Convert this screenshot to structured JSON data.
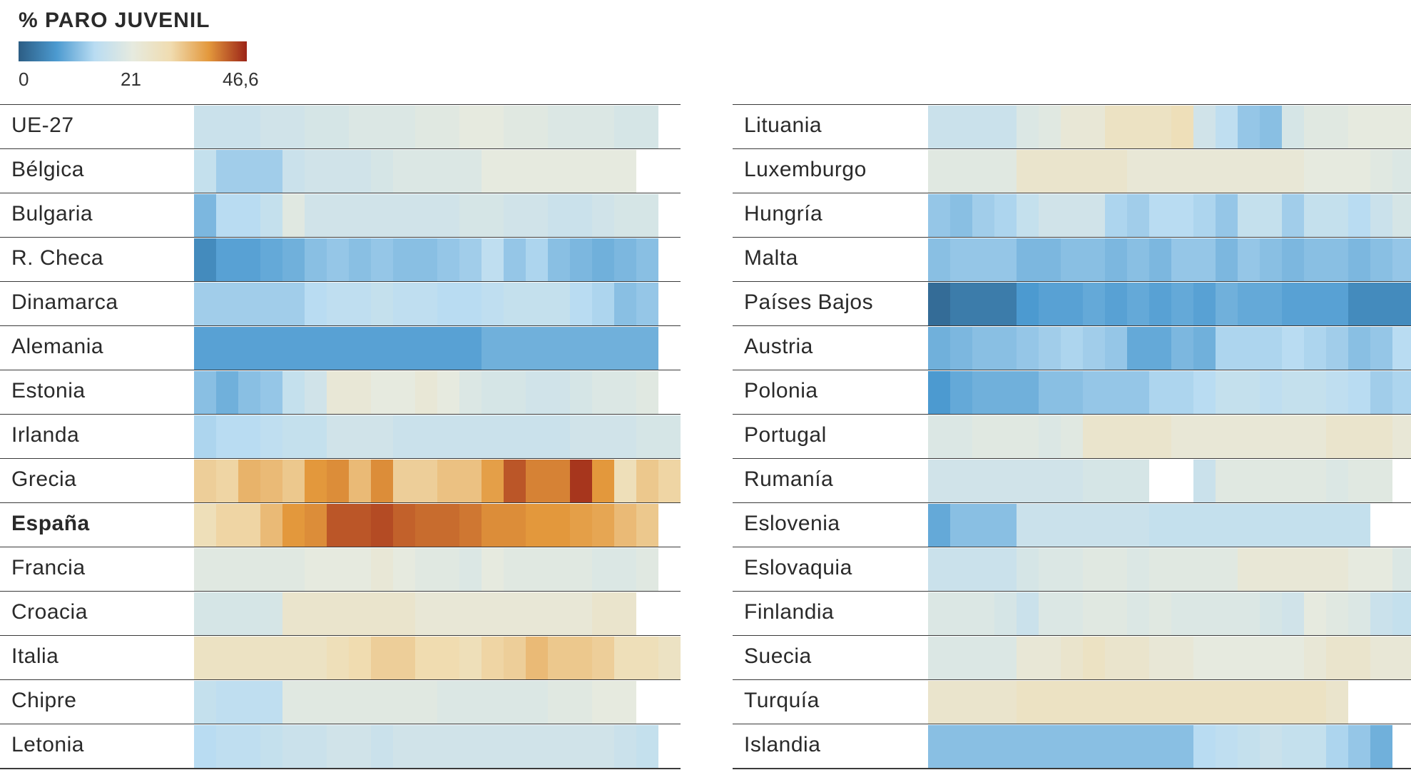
{
  "legend": {
    "title": "% PARO JUVENIL",
    "min_label": "0",
    "mid_label": "21",
    "max_label": "46,6",
    "min": 0,
    "mid": 21,
    "max": 46.6,
    "colors": [
      "#2c5d84",
      "#4c9ad0",
      "#b9dcf2",
      "#e6eadf",
      "#f0dcb0",
      "#e3983c",
      "#9c2418"
    ]
  },
  "chart_data": {
    "type": "heatmap",
    "title": "% PARO JUVENIL",
    "value_range": [
      0,
      46.6
    ],
    "panels": [
      {
        "rows": [
          {
            "label": "UE-27",
            "values": [
              16,
              16,
              16,
              17,
              17,
              18,
              18,
              19,
              19,
              19,
              20,
              20,
              21,
              21,
              20,
              20,
              19,
              19,
              19,
              18,
              18
            ]
          },
          {
            "label": "Bélgica",
            "values": [
              15,
              11,
              11,
              11,
              16,
              17,
              17,
              17,
              18,
              19,
              19,
              19,
              19,
              21,
              21,
              21,
              21,
              21,
              21,
              21,
              null
            ]
          },
          {
            "label": "Bulgaria",
            "values": [
              8,
              13,
              13,
              15,
              20,
              17,
              17,
              17,
              17,
              17,
              17,
              17,
              18,
              18,
              17,
              17,
              16,
              16,
              17,
              18,
              18
            ]
          },
          {
            "label": "R. Checa",
            "values": [
              3,
              5,
              5,
              6,
              7,
              9,
              10,
              9,
              10,
              9,
              9,
              10,
              11,
              14,
              10,
              12,
              9,
              8,
              7,
              8,
              9
            ]
          },
          {
            "label": "Dinamarca",
            "values": [
              11,
              11,
              11,
              11,
              11,
              13,
              14,
              14,
              15,
              14,
              14,
              13,
              13,
              14,
              15,
              15,
              15,
              13,
              12,
              9,
              10
            ]
          },
          {
            "label": "Alemania",
            "values": [
              5,
              5,
              5,
              5,
              5,
              5,
              5,
              5,
              5,
              5,
              5,
              5,
              5,
              7,
              7,
              7,
              7,
              7,
              7,
              7,
              7
            ]
          },
          {
            "label": "Estonia",
            "values": [
              9,
              7,
              9,
              10,
              15,
              17,
              22,
              22,
              21,
              21,
              22,
              21,
              19,
              18,
              18,
              17,
              17,
              18,
              19,
              19,
              20
            ]
          },
          {
            "label": "Irlanda",
            "values": [
              12,
              13,
              13,
              14,
              15,
              15,
              17,
              17,
              17,
              16,
              16,
              16,
              16,
              16,
              16,
              16,
              16,
              17,
              17,
              17,
              18,
              18
            ]
          },
          {
            "label": "Grecia",
            "values": [
              28,
              27,
              32,
              31,
              29,
              36,
              37,
              31,
              37,
              28,
              28,
              30,
              30,
              35,
              42,
              38,
              38,
              45,
              36,
              25,
              29,
              27
            ]
          },
          {
            "label": "España",
            "values": [
              25,
              27,
              27,
              31,
              36,
              37,
              42,
              42,
              43,
              41,
              40,
              40,
              39,
              37,
              37,
              36,
              36,
              35,
              34,
              31,
              29
            ]
          },
          {
            "label": "Francia",
            "values": [
              20,
              20,
              20,
              20,
              20,
              21,
              21,
              21,
              22,
              21,
              20,
              20,
              19,
              21,
              20,
              20,
              20,
              20,
              19,
              19,
              20
            ]
          },
          {
            "label": "Croacia",
            "values": [
              18,
              18,
              18,
              18,
              23,
              23,
              23,
              23,
              23,
              23,
              22,
              22,
              22,
              22,
              22,
              22,
              22,
              22,
              23,
              23,
              null
            ]
          },
          {
            "label": "Italia",
            "values": [
              24,
              24,
              24,
              24,
              24,
              24,
              25,
              26,
              28,
              28,
              26,
              26,
              25,
              27,
              28,
              31,
              29,
              29,
              28,
              25,
              25,
              24
            ]
          },
          {
            "label": "Chipre",
            "values": [
              15,
              14,
              14,
              14,
              20,
              20,
              20,
              20,
              20,
              20,
              20,
              19,
              19,
              19,
              19,
              19,
              20,
              20,
              21,
              21,
              null
            ]
          },
          {
            "label": "Letonia",
            "values": [
              13,
              14,
              14,
              15,
              16,
              16,
              17,
              17,
              16,
              17,
              17,
              17,
              17,
              17,
              17,
              17,
              17,
              17,
              17,
              16,
              15
            ]
          }
        ]
      },
      {
        "rows": [
          {
            "label": "Lituania",
            "values": [
              16,
              16,
              16,
              16,
              19,
              20,
              22,
              22,
              24,
              24,
              24,
              25,
              17,
              14,
              10,
              9,
              18,
              20,
              20,
              21,
              21,
              21
            ]
          },
          {
            "label": "Luxemburgo",
            "values": [
              20,
              20,
              20,
              20,
              23,
              23,
              23,
              23,
              23,
              22,
              22,
              22,
              22,
              22,
              22,
              22,
              22,
              21,
              21,
              21,
              20,
              19
            ]
          },
          {
            "label": "Hungría",
            "values": [
              10,
              9,
              11,
              12,
              15,
              17,
              17,
              17,
              12,
              11,
              13,
              13,
              12,
              10,
              15,
              15,
              11,
              15,
              15,
              13,
              16,
              18
            ]
          },
          {
            "label": "Malta",
            "values": [
              9,
              10,
              10,
              10,
              8,
              8,
              9,
              9,
              8,
              9,
              8,
              10,
              10,
              8,
              10,
              9,
              8,
              9,
              9,
              8,
              9,
              10
            ]
          },
          {
            "label": "Países Bajos",
            "values": [
              1,
              2,
              2,
              2,
              4,
              5,
              5,
              6,
              5,
              6,
              5,
              6,
              5,
              7,
              6,
              6,
              5,
              5,
              5,
              3,
              3,
              3,
              3
            ]
          },
          {
            "label": "Austria",
            "values": [
              7,
              8,
              9,
              9,
              10,
              11,
              12,
              11,
              10,
              6,
              6,
              8,
              7,
              12,
              12,
              12,
              13,
              12,
              11,
              9,
              10,
              13
            ]
          },
          {
            "label": "Polonia",
            "values": [
              4,
              6,
              7,
              7,
              7,
              9,
              9,
              10,
              10,
              10,
              12,
              12,
              13,
              15,
              15,
              14,
              15,
              15,
              14,
              13,
              11,
              12
            ]
          },
          {
            "label": "Portugal",
            "values": [
              19,
              19,
              20,
              20,
              20,
              19,
              20,
              23,
              23,
              23,
              23,
              22,
              22,
              22,
              22,
              22,
              22,
              22,
              23,
              23,
              23,
              22
            ]
          },
          {
            "label": "Rumanía",
            "values": [
              17,
              17,
              17,
              17,
              17,
              17,
              17,
              18,
              18,
              18,
              null,
              null,
              16,
              20,
              20,
              20,
              20,
              20,
              19,
              20,
              20,
              null
            ]
          },
          {
            "label": "Eslovenia",
            "values": [
              6,
              9,
              9,
              9,
              16,
              16,
              16,
              16,
              16,
              16,
              15,
              15,
              15,
              15,
              15,
              15,
              15,
              15,
              15,
              15,
              null
            ]
          },
          {
            "label": "Eslovaquia",
            "values": [
              16,
              16,
              16,
              16,
              18,
              19,
              19,
              20,
              20,
              19,
              20,
              20,
              20,
              20,
              22,
              22,
              22,
              22,
              22,
              21,
              21,
              19
            ]
          },
          {
            "label": "Finlandia",
            "values": [
              19,
              19,
              19,
              18,
              16,
              19,
              19,
              20,
              20,
              19,
              20,
              19,
              19,
              19,
              19,
              18,
              17,
              21,
              20,
              19,
              16,
              15,
              15
            ]
          },
          {
            "label": "Suecia",
            "values": [
              19,
              19,
              19,
              19,
              22,
              22,
              23,
              24,
              23,
              23,
              22,
              22,
              21,
              21,
              21,
              21,
              21,
              22,
              23,
              23,
              22,
              22,
              23
            ]
          },
          {
            "label": "Turquía",
            "values": [
              23,
              23,
              23,
              23,
              24,
              24,
              24,
              24,
              24,
              24,
              24,
              24,
              24,
              24,
              24,
              24,
              24,
              24,
              23,
              null,
              null,
              null
            ]
          },
          {
            "label": "Islandia",
            "values": [
              9,
              9,
              9,
              9,
              9,
              9,
              9,
              9,
              9,
              9,
              9,
              9,
              13,
              14,
              15,
              16,
              15,
              15,
              12,
              10,
              7,
              null
            ]
          }
        ]
      }
    ]
  }
}
